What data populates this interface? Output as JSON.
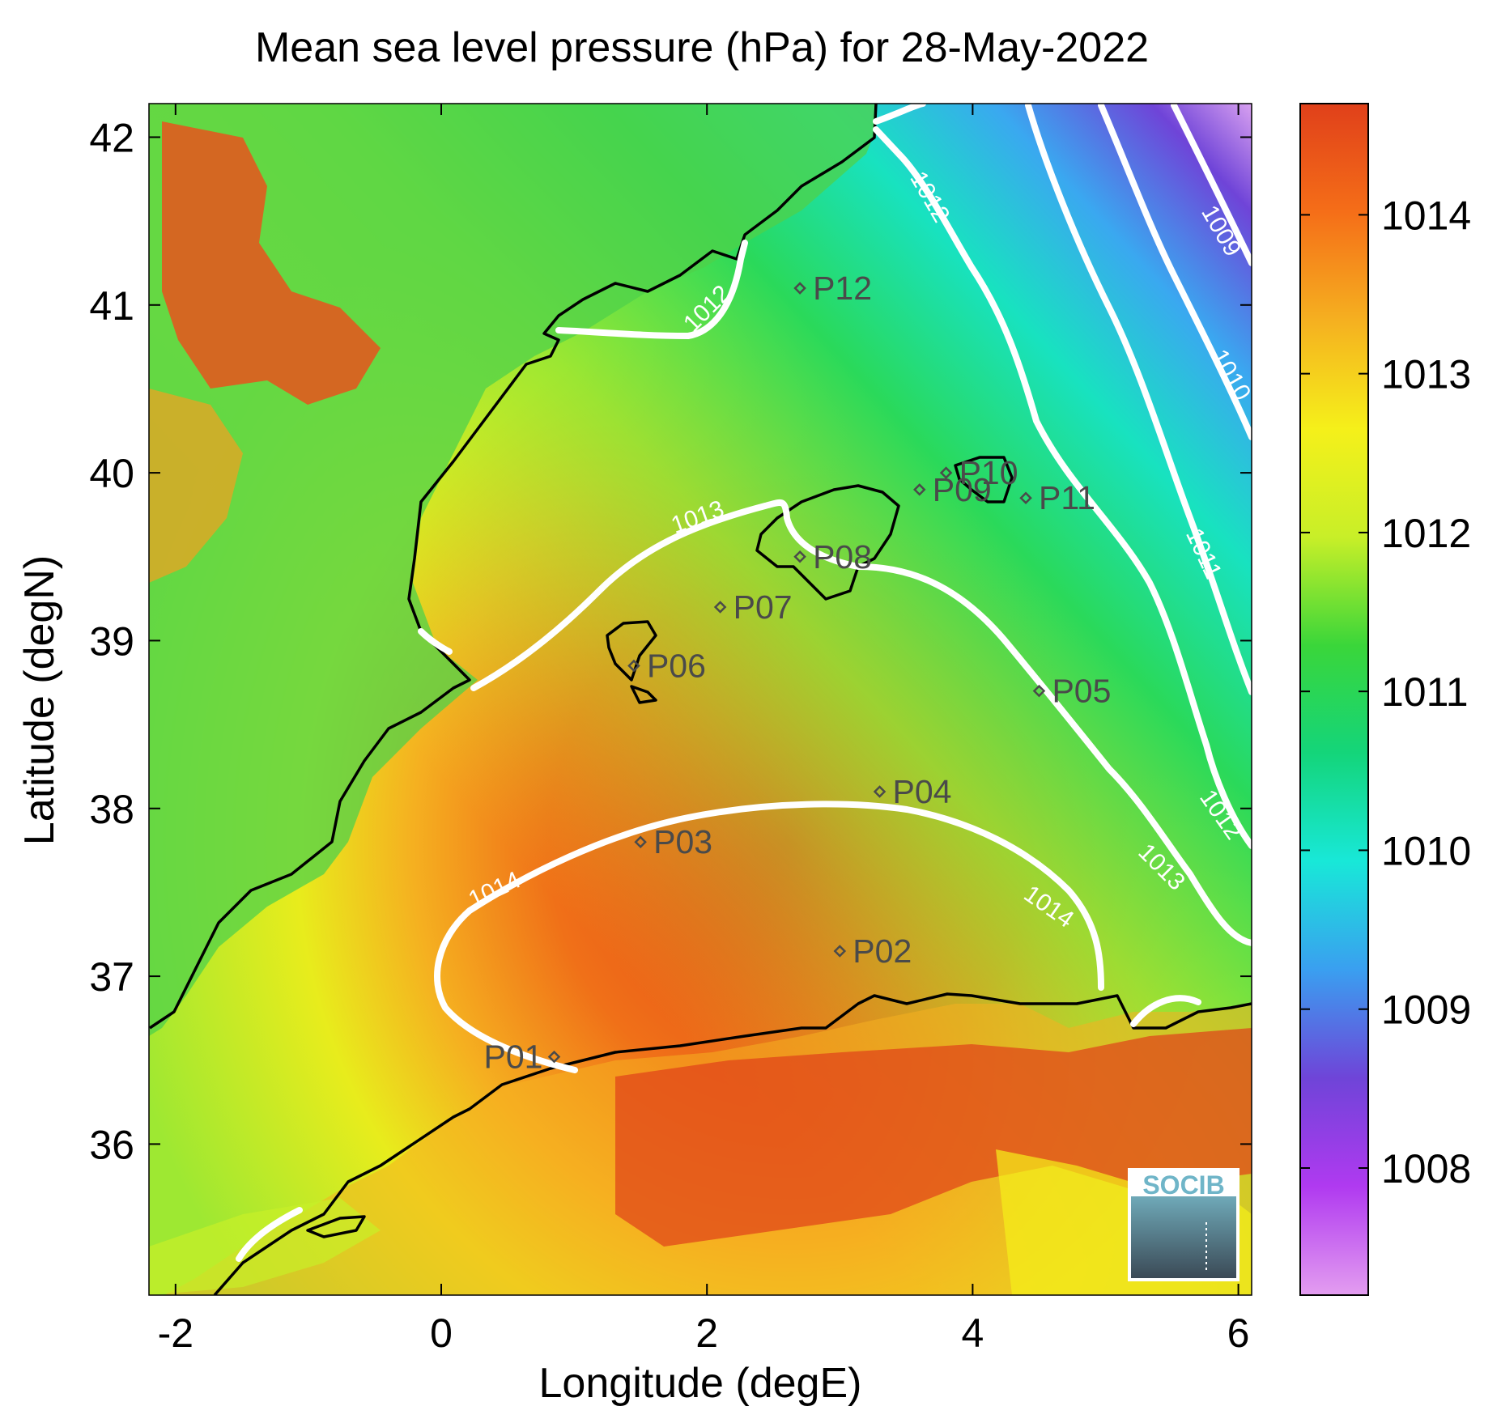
{
  "map": {
    "title": "Mean sea level pressure (hPa) for 28-May-2022",
    "xlabel": "Longitude (degE)",
    "ylabel": "Latitude (degN)",
    "xlim": [
      -2.2,
      6.1
    ],
    "ylim": [
      35.1,
      42.2
    ],
    "x_ticks": [
      -2,
      0,
      2,
      4,
      6
    ],
    "x_tick_labels": [
      "-2",
      "0",
      "2",
      "4",
      "6"
    ],
    "y_ticks": [
      36,
      37,
      38,
      39,
      40,
      41,
      42
    ],
    "y_tick_labels": [
      "36",
      "37",
      "38",
      "39",
      "40",
      "41",
      "42"
    ],
    "colorbar": {
      "range": [
        1007.2,
        1014.7
      ],
      "ticks": [
        1008,
        1009,
        1010,
        1011,
        1012,
        1013,
        1014
      ],
      "tick_labels": [
        "1008",
        "1009",
        "1010",
        "1011",
        "1012",
        "1013",
        "1014"
      ],
      "colors": [
        "#e39df0",
        "#b03af0",
        "#6f44d8",
        "#3a9ff0",
        "#18e8d8",
        "#14d57a",
        "#3ad63a",
        "#c8ef28",
        "#f5f01a",
        "#f5b020",
        "#f56e18",
        "#e0401a"
      ]
    },
    "contour_labels": [
      "1009",
      "1010",
      "1011",
      "1012",
      "1012",
      "1012",
      "1013",
      "1013",
      "1014",
      "1014"
    ],
    "points": [
      {
        "label": "P01",
        "lon": 0.85,
        "lat": 36.52
      },
      {
        "label": "P02",
        "lon": 3.0,
        "lat": 37.15
      },
      {
        "label": "P03",
        "lon": 1.5,
        "lat": 37.8
      },
      {
        "label": "P04",
        "lon": 3.3,
        "lat": 38.1
      },
      {
        "label": "P05",
        "lon": 4.5,
        "lat": 38.7
      },
      {
        "label": "P06",
        "lon": 1.45,
        "lat": 38.85
      },
      {
        "label": "P07",
        "lon": 2.1,
        "lat": 39.2
      },
      {
        "label": "P08",
        "lon": 2.7,
        "lat": 39.5
      },
      {
        "label": "P09",
        "lon": 3.6,
        "lat": 39.9
      },
      {
        "label": "P10",
        "lon": 3.8,
        "lat": 40.0
      },
      {
        "label": "P11",
        "lon": 4.4,
        "lat": 39.85
      },
      {
        "label": "P12",
        "lon": 2.7,
        "lat": 41.1
      }
    ],
    "logo_text": "SOCIB"
  }
}
